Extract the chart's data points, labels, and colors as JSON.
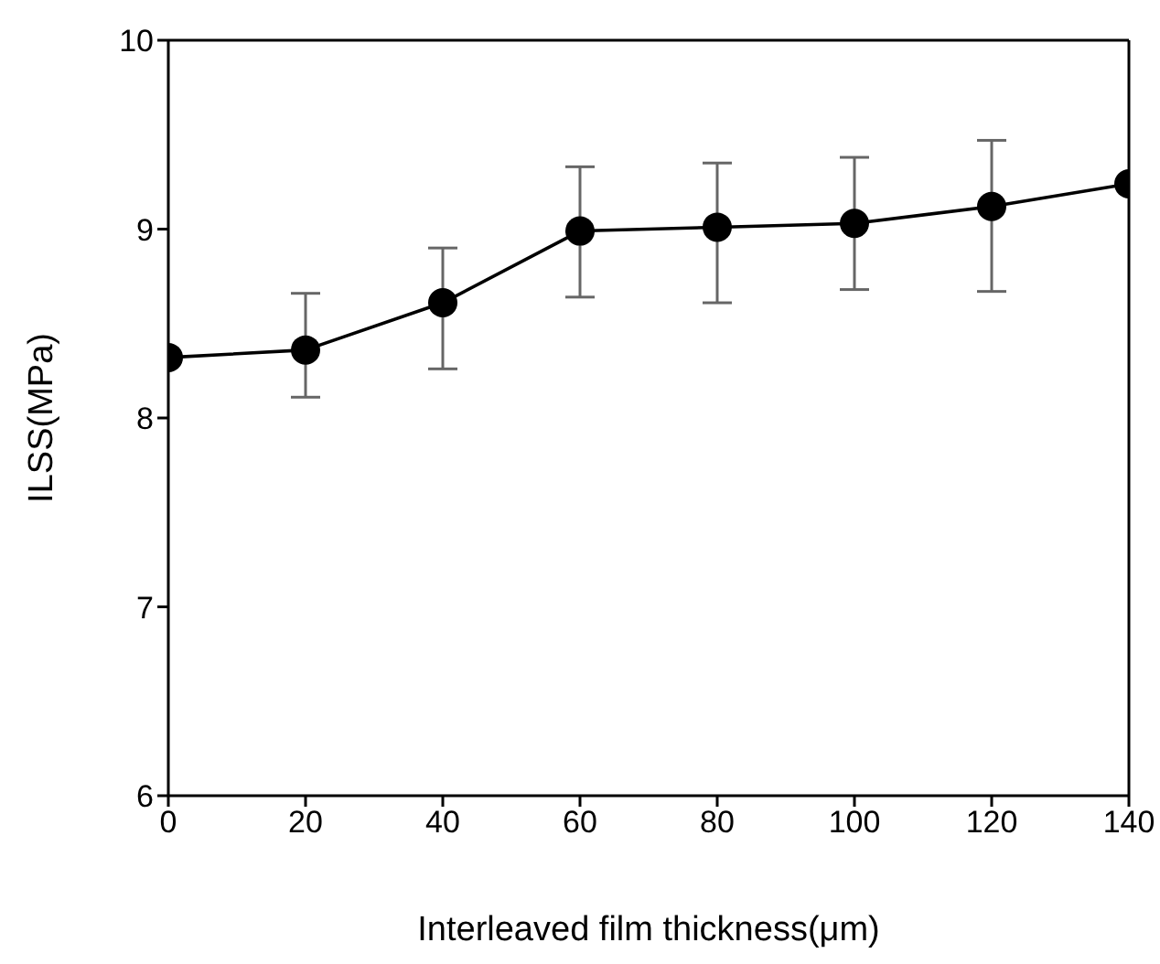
{
  "chart_data": {
    "type": "line",
    "xlabel": "Interleaved film thickness(μm)",
    "ylabel": "ILSS(MPa)",
    "x": [
      0,
      20,
      40,
      60,
      80,
      100,
      120,
      140
    ],
    "series": [
      {
        "color": "#000000",
        "values": [
          8.32,
          8.36,
          8.61,
          8.99,
          9.01,
          9.03,
          9.12,
          9.24
        ],
        "errors": [
          null,
          [
            8.11,
            8.66
          ],
          [
            8.26,
            8.9
          ],
          [
            8.64,
            9.33
          ],
          [
            8.61,
            9.35
          ],
          [
            8.68,
            9.38
          ],
          [
            8.67,
            9.47
          ],
          null
        ]
      }
    ],
    "xlim": [
      0,
      140
    ],
    "xticks": [
      0,
      20,
      40,
      60,
      80,
      100,
      120,
      140
    ],
    "ylim": [
      6,
      10
    ],
    "yticks": [
      6,
      7,
      8,
      9,
      10
    ],
    "grid": false,
    "legend": false,
    "marker": "circle",
    "line_style": "solid"
  }
}
